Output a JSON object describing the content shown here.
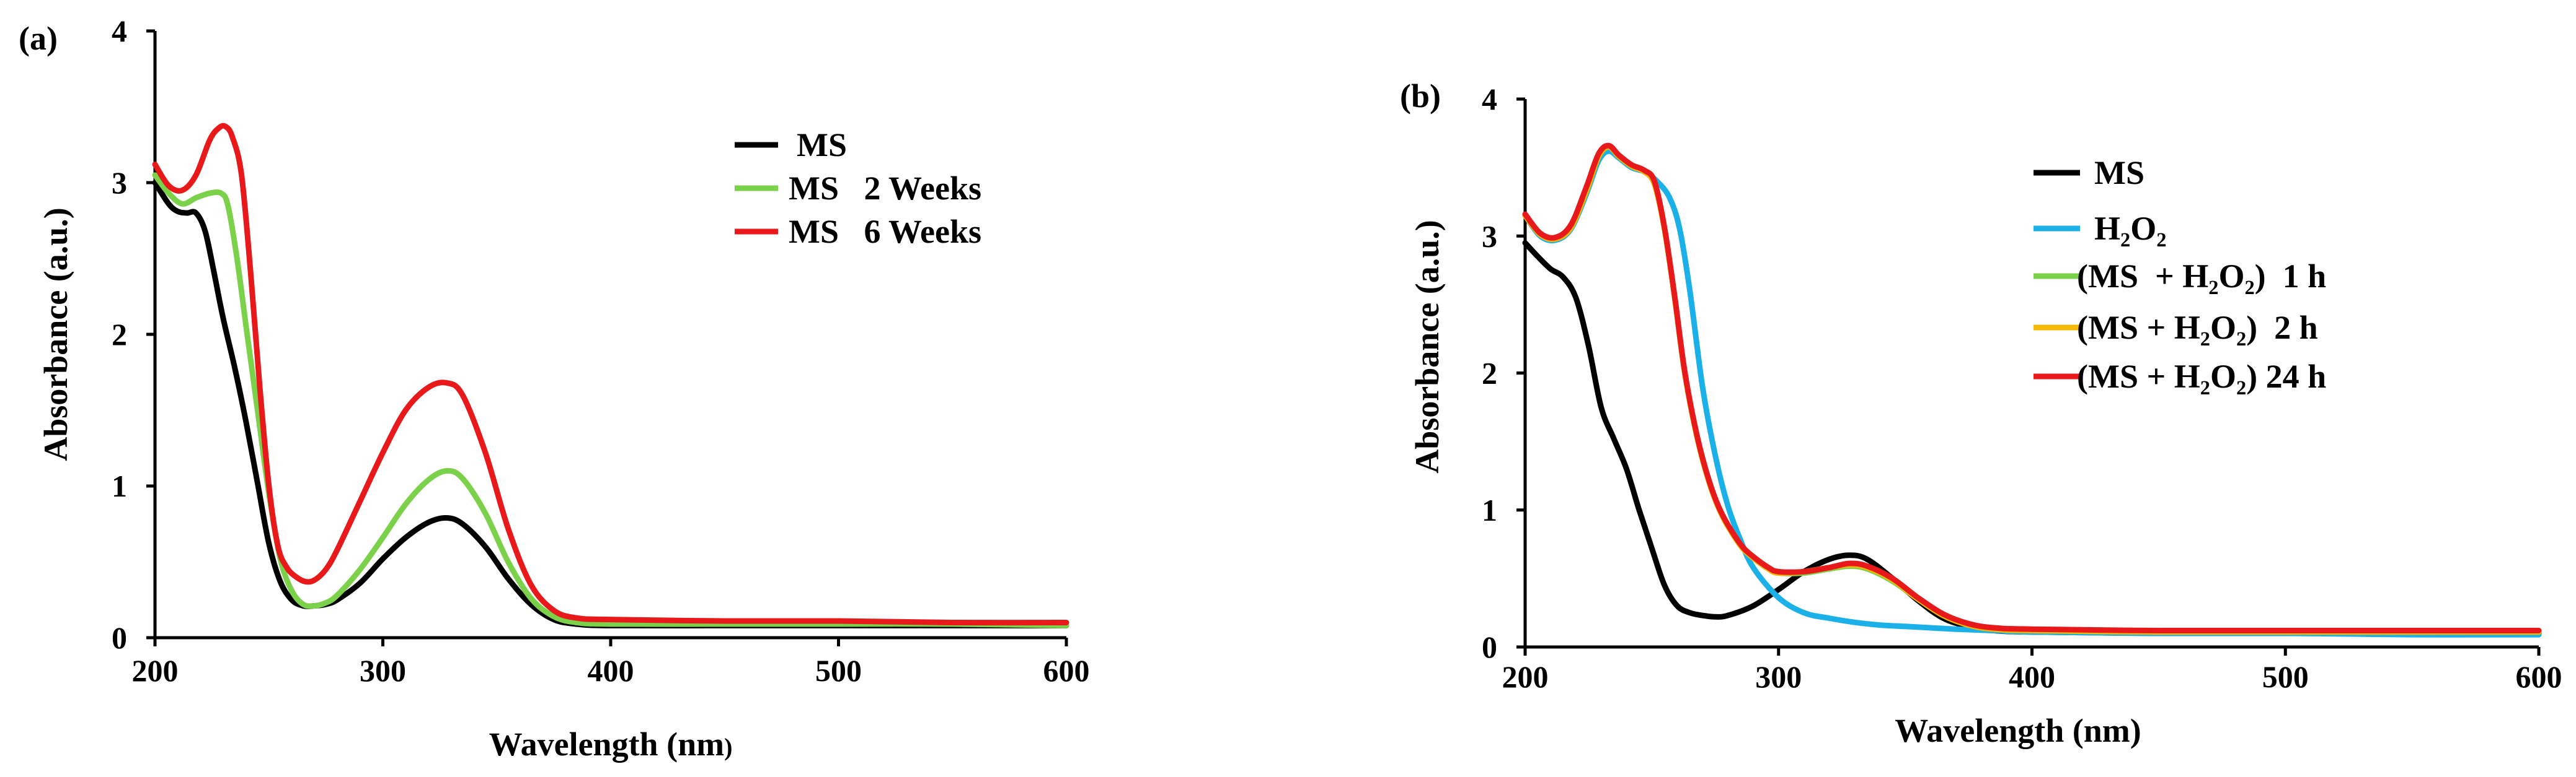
{
  "chart_data": [
    {
      "panel": "(a)",
      "type": "line",
      "title": "",
      "xlabel": "Wavelength (nm",
      "xlabel_suffix": ")",
      "ylabel": "Absorbance (a.u.)",
      "xlim": [
        200,
        600
      ],
      "ylim": [
        0,
        4
      ],
      "xticks": [
        200,
        300,
        400,
        500,
        600
      ],
      "yticks": [
        0,
        1,
        2,
        3,
        4
      ],
      "legend_position": "top-right",
      "series": [
        {
          "name": "MS",
          "color": "#000000",
          "x": [
            200,
            206,
            210,
            214,
            218,
            222,
            226,
            230,
            235,
            240,
            245,
            250,
            255,
            260,
            265,
            270,
            275,
            280,
            290,
            300,
            310,
            320,
            328,
            335,
            345,
            355,
            365,
            375,
            385,
            400,
            450,
            500,
            550,
            600
          ],
          "y": [
            3.0,
            2.86,
            2.81,
            2.8,
            2.8,
            2.68,
            2.4,
            2.1,
            1.78,
            1.42,
            1.02,
            0.62,
            0.37,
            0.25,
            0.21,
            0.21,
            0.22,
            0.25,
            0.36,
            0.52,
            0.66,
            0.76,
            0.79,
            0.75,
            0.6,
            0.39,
            0.22,
            0.12,
            0.09,
            0.08,
            0.08,
            0.08,
            0.08,
            0.08
          ]
        },
        {
          "name": "MS   2 Weeks",
          "color": "#7bd14a",
          "x": [
            200,
            206,
            212,
            218,
            224,
            229,
            232,
            236,
            240,
            245,
            250,
            255,
            260,
            265,
            270,
            275,
            280,
            290,
            300,
            310,
            320,
            328,
            335,
            345,
            355,
            365,
            375,
            385,
            400,
            450,
            500,
            550,
            600
          ],
          "y": [
            3.05,
            2.93,
            2.86,
            2.9,
            2.93,
            2.93,
            2.85,
            2.5,
            2.05,
            1.5,
            0.95,
            0.52,
            0.31,
            0.22,
            0.21,
            0.23,
            0.28,
            0.45,
            0.66,
            0.88,
            1.04,
            1.1,
            1.05,
            0.82,
            0.5,
            0.26,
            0.14,
            0.1,
            0.09,
            0.09,
            0.09,
            0.09,
            0.08
          ]
        },
        {
          "name": "MS   6 Weeks",
          "color": "#e8191b",
          "x": [
            200,
            206,
            212,
            218,
            224,
            228,
            231,
            234,
            238,
            242,
            246,
            250,
            254,
            258,
            262,
            266,
            270,
            275,
            280,
            290,
            300,
            310,
            320,
            328,
            335,
            345,
            355,
            365,
            375,
            385,
            400,
            450,
            500,
            550,
            600
          ],
          "y": [
            3.12,
            2.98,
            2.95,
            3.05,
            3.28,
            3.36,
            3.37,
            3.3,
            3.05,
            2.4,
            1.65,
            1.0,
            0.6,
            0.46,
            0.4,
            0.37,
            0.38,
            0.45,
            0.58,
            0.9,
            1.22,
            1.5,
            1.65,
            1.68,
            1.6,
            1.22,
            0.72,
            0.35,
            0.18,
            0.13,
            0.12,
            0.11,
            0.11,
            0.1,
            0.1
          ]
        }
      ]
    },
    {
      "panel": "(b)",
      "type": "line",
      "title": "",
      "xlabel": "Wavelength (nm)",
      "ylabel": "Absorbance (a.u.)",
      "xlim": [
        200,
        600
      ],
      "ylim": [
        0,
        4
      ],
      "xticks": [
        200,
        300,
        400,
        500,
        600
      ],
      "yticks": [
        0,
        1,
        2,
        3,
        4
      ],
      "legend_position": "top-right",
      "series": [
        {
          "name": "MS",
          "color": "#000000",
          "x": [
            200,
            205,
            210,
            215,
            220,
            225,
            230,
            235,
            240,
            245,
            250,
            255,
            260,
            265,
            270,
            275,
            280,
            290,
            300,
            310,
            320,
            328,
            335,
            345,
            355,
            365,
            375,
            385,
            400,
            450,
            500,
            550,
            600
          ],
          "y": [
            2.95,
            2.85,
            2.76,
            2.7,
            2.55,
            2.2,
            1.75,
            1.52,
            1.3,
            1.0,
            0.72,
            0.45,
            0.3,
            0.25,
            0.23,
            0.22,
            0.23,
            0.3,
            0.42,
            0.55,
            0.64,
            0.67,
            0.64,
            0.5,
            0.34,
            0.21,
            0.15,
            0.12,
            0.11,
            0.1,
            0.1,
            0.1,
            0.1
          ]
        },
        {
          "name": "H₂O₂",
          "color": "#1cb0e8",
          "x": [
            200,
            206,
            212,
            218,
            224,
            229,
            233,
            237,
            242,
            247,
            252,
            257,
            261,
            265,
            270,
            275,
            280,
            285,
            290,
            300,
            310,
            320,
            330,
            340,
            350,
            360,
            370,
            385,
            400,
            450,
            500,
            550,
            600
          ],
          "y": [
            3.15,
            3.0,
            2.97,
            3.05,
            3.3,
            3.55,
            3.62,
            3.57,
            3.5,
            3.47,
            3.4,
            3.28,
            3.05,
            2.6,
            1.9,
            1.4,
            1.03,
            0.78,
            0.58,
            0.36,
            0.25,
            0.21,
            0.18,
            0.16,
            0.15,
            0.14,
            0.13,
            0.12,
            0.11,
            0.1,
            0.1,
            0.09,
            0.09
          ]
        },
        {
          "name": "(MS  + H₂O₂)  1 h",
          "color": "#7bd14a",
          "x": [
            200,
            206,
            212,
            218,
            224,
            229,
            233,
            237,
            242,
            247,
            251,
            255,
            259,
            263,
            268,
            273,
            278,
            285,
            290,
            296,
            300,
            310,
            320,
            328,
            335,
            345,
            355,
            365,
            375,
            385,
            400,
            450,
            500,
            550,
            600
          ],
          "y": [
            3.15,
            3.01,
            2.98,
            3.06,
            3.32,
            3.58,
            3.65,
            3.58,
            3.51,
            3.47,
            3.38,
            3.05,
            2.55,
            2.0,
            1.52,
            1.18,
            0.95,
            0.74,
            0.65,
            0.57,
            0.54,
            0.54,
            0.57,
            0.59,
            0.57,
            0.48,
            0.35,
            0.23,
            0.16,
            0.13,
            0.12,
            0.11,
            0.11,
            0.11,
            0.11
          ]
        },
        {
          "name": "(MS + H₂O₂)  2 h",
          "color": "#f5b800",
          "x": [
            200,
            206,
            212,
            218,
            224,
            229,
            233,
            237,
            242,
            247,
            251,
            255,
            259,
            263,
            268,
            273,
            278,
            285,
            290,
            296,
            300,
            310,
            320,
            328,
            335,
            345,
            355,
            365,
            375,
            385,
            400,
            450,
            500,
            550,
            600
          ],
          "y": [
            3.15,
            3.01,
            2.98,
            3.06,
            3.32,
            3.58,
            3.65,
            3.58,
            3.51,
            3.47,
            3.38,
            3.05,
            2.55,
            2.0,
            1.52,
            1.18,
            0.95,
            0.74,
            0.65,
            0.57,
            0.54,
            0.55,
            0.58,
            0.6,
            0.58,
            0.49,
            0.35,
            0.23,
            0.16,
            0.13,
            0.12,
            0.11,
            0.11,
            0.11,
            0.11
          ]
        },
        {
          "name": "(MS + H₂O₂) 24 h",
          "color": "#e8191b",
          "x": [
            200,
            206,
            212,
            218,
            224,
            229,
            233,
            237,
            242,
            247,
            251,
            255,
            259,
            263,
            268,
            273,
            278,
            285,
            290,
            296,
            300,
            310,
            320,
            328,
            335,
            345,
            355,
            365,
            375,
            385,
            400,
            450,
            500,
            550,
            600
          ],
          "y": [
            3.16,
            3.02,
            2.99,
            3.08,
            3.35,
            3.6,
            3.66,
            3.59,
            3.52,
            3.48,
            3.4,
            3.06,
            2.56,
            2.01,
            1.53,
            1.19,
            0.96,
            0.75,
            0.66,
            0.58,
            0.55,
            0.55,
            0.58,
            0.61,
            0.59,
            0.5,
            0.36,
            0.24,
            0.17,
            0.14,
            0.13,
            0.12,
            0.12,
            0.12,
            0.12
          ]
        }
      ]
    }
  ]
}
